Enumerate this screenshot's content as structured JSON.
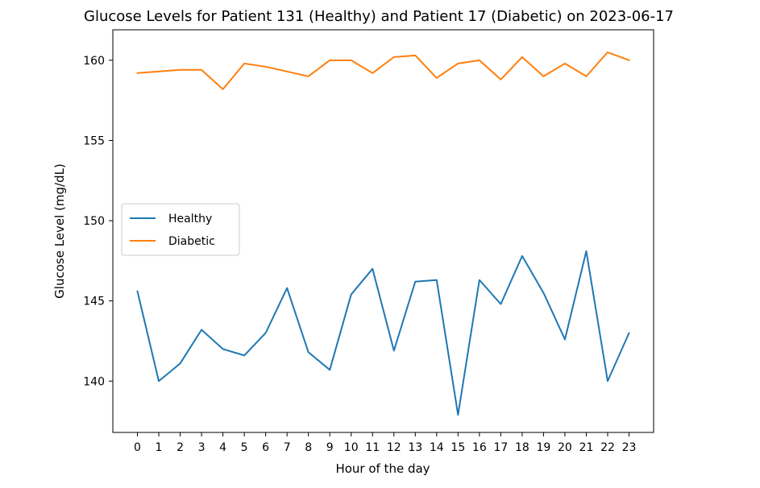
{
  "chart_data": {
    "type": "line",
    "title": "Glucose Levels for Patient 131 (Healthy) and Patient 17 (Diabetic) on 2023-06-17",
    "xlabel": "Hour of the day",
    "ylabel": "Glucose Level (mg/dL)",
    "x": [
      0,
      1,
      2,
      3,
      4,
      5,
      6,
      7,
      8,
      9,
      10,
      11,
      12,
      13,
      14,
      15,
      16,
      17,
      18,
      19,
      20,
      21,
      22,
      23
    ],
    "xticks": [
      "0",
      "1",
      "2",
      "3",
      "4",
      "5",
      "6",
      "7",
      "8",
      "9",
      "10",
      "11",
      "12",
      "13",
      "14",
      "15",
      "16",
      "17",
      "18",
      "19",
      "20",
      "21",
      "22",
      "23"
    ],
    "yticks": [
      140,
      145,
      150,
      155,
      160
    ],
    "xlim": [
      -1.15,
      24.15
    ],
    "ylim": [
      136.8,
      161.9
    ],
    "grid": false,
    "legend_position": "center-left",
    "series": [
      {
        "name": "Healthy",
        "color": "#1f77b4",
        "values": [
          145.6,
          140.0,
          141.1,
          143.2,
          142.0,
          141.6,
          143.0,
          145.8,
          141.8,
          140.7,
          145.4,
          147.0,
          141.9,
          146.2,
          146.3,
          137.9,
          146.3,
          144.8,
          147.8,
          145.5,
          142.6,
          148.1,
          140.0,
          143.0
        ]
      },
      {
        "name": "Diabetic",
        "color": "#ff7f0e",
        "values": [
          159.2,
          159.3,
          159.4,
          159.4,
          158.2,
          159.8,
          159.6,
          159.3,
          159.0,
          160.0,
          160.0,
          159.2,
          160.2,
          160.3,
          158.9,
          159.8,
          160.0,
          158.8,
          160.2,
          159.0,
          159.8,
          159.0,
          160.5,
          160.0
        ]
      }
    ]
  }
}
